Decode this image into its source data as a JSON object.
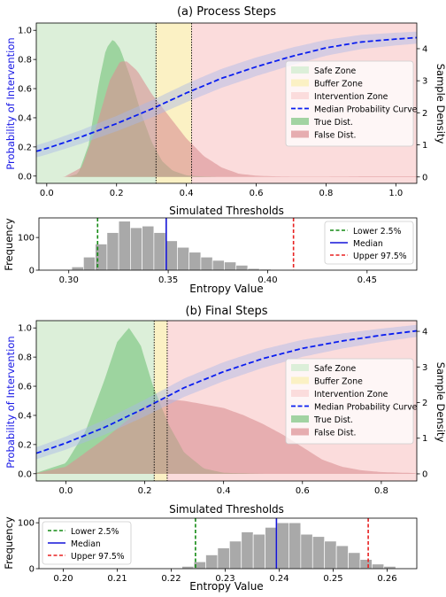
{
  "chart_data": [
    {
      "type": "area",
      "title": "(a) Process Steps",
      "xlabel": "Simulated Thresholds",
      "ylabel": "Probability of Intervention",
      "y2label": "Sample Density",
      "xlim": [
        -0.03,
        1.06
      ],
      "ylim": [
        -0.05,
        1.05
      ],
      "y2lim": [
        -0.2,
        4.8
      ],
      "xticks": [
        "0.0",
        "0.2",
        "0.4",
        "0.6",
        "0.8",
        "1.0"
      ],
      "yticks": [
        "0.0",
        "0.2",
        "0.4",
        "0.6",
        "0.8",
        "1.0"
      ],
      "y2ticks": [
        "0",
        "1",
        "2",
        "3",
        "4"
      ],
      "zones": {
        "safe_end": 0.313,
        "buffer_end": 0.415
      },
      "legend_position": "center-right",
      "legend": [
        "Safe Zone",
        "Buffer Zone",
        "Intervention Zone",
        "Median Probability Curve",
        "True Dist.",
        "False Dist."
      ],
      "median_curve": {
        "x": [
          -0.03,
          0.0,
          0.1,
          0.2,
          0.3,
          0.4,
          0.5,
          0.6,
          0.7,
          0.8,
          0.9,
          1.0,
          1.06
        ],
        "y": [
          0.17,
          0.19,
          0.27,
          0.36,
          0.46,
          0.57,
          0.67,
          0.75,
          0.82,
          0.88,
          0.92,
          0.94,
          0.95
        ]
      },
      "true_dist": {
        "x": [
          0.06,
          0.09,
          0.12,
          0.15,
          0.17,
          0.19,
          0.21,
          0.24,
          0.27,
          0.3,
          0.33,
          0.36,
          0.4,
          0.45,
          0.5
        ],
        "y": [
          0.0,
          0.1,
          1.0,
          3.0,
          4.0,
          4.3,
          4.0,
          3.1,
          2.0,
          1.1,
          0.5,
          0.2,
          0.05,
          0.01,
          0.0
        ]
      },
      "false_dist": {
        "x": [
          0.05,
          0.1,
          0.14,
          0.18,
          0.21,
          0.23,
          0.26,
          0.3,
          0.35,
          0.4,
          0.45,
          0.5,
          0.55,
          0.6,
          0.65,
          0.7,
          0.8,
          0.9,
          1.0,
          1.06
        ],
        "y": [
          0.0,
          0.3,
          1.5,
          3.0,
          3.6,
          3.6,
          3.3,
          2.6,
          1.9,
          1.2,
          0.65,
          0.3,
          0.1,
          0.04,
          0.02,
          0.01,
          0.01,
          0.02,
          0.02,
          0.02
        ]
      }
    },
    {
      "type": "bar",
      "xlabel": "Entropy Value",
      "ylabel": "Frequency",
      "xlim": [
        0.285,
        0.475
      ],
      "ylim": [
        0,
        160
      ],
      "xticks": [
        "0.30",
        "0.35",
        "0.40",
        "0.45"
      ],
      "yticks": [
        "0",
        "100"
      ],
      "bin_start": 0.3015,
      "bin_width": 0.0059,
      "values": [
        10,
        40,
        80,
        115,
        150,
        130,
        135,
        115,
        90,
        70,
        55,
        40,
        30,
        25,
        15,
        5,
        3,
        2
      ],
      "lines": {
        "lower": 0.3145,
        "median": 0.349,
        "upper": 0.413
      },
      "legend_position": "upper-right",
      "legend": [
        "Lower 2.5%",
        "Median",
        "Upper 97.5%"
      ]
    },
    {
      "type": "area",
      "title": "(b) Final Steps",
      "xlabel": "Simulated Thresholds",
      "ylabel": "Probability of Intervention",
      "y2label": "Sample Density",
      "xlim": [
        -0.075,
        0.89
      ],
      "ylim": [
        -0.05,
        1.05
      ],
      "y2lim": [
        -0.2,
        4.3
      ],
      "xticks": [
        "0.0",
        "0.2",
        "0.4",
        "0.6",
        "0.8"
      ],
      "yticks": [
        "0.0",
        "0.2",
        "0.4",
        "0.6",
        "0.8",
        "1.0"
      ],
      "y2ticks": [
        "0",
        "1",
        "2",
        "3",
        "4"
      ],
      "zones": {
        "safe_end": 0.224,
        "buffer_end": 0.257
      },
      "legend_position": "center-right",
      "legend": [
        "Safe Zone",
        "Buffer Zone",
        "Intervention Zone",
        "Median Probability Curve",
        "True Dist.",
        "False Dist."
      ],
      "median_curve": {
        "x": [
          -0.075,
          0.0,
          0.1,
          0.2,
          0.3,
          0.4,
          0.5,
          0.6,
          0.7,
          0.8,
          0.89
        ],
        "y": [
          0.14,
          0.21,
          0.32,
          0.45,
          0.59,
          0.7,
          0.79,
          0.86,
          0.91,
          0.95,
          0.98
        ]
      },
      "true_dist": {
        "x": [
          -0.075,
          0.0,
          0.05,
          0.1,
          0.13,
          0.16,
          0.19,
          0.22,
          0.26,
          0.3,
          0.35,
          0.4,
          0.5
        ],
        "y": [
          0.03,
          0.3,
          1.2,
          2.7,
          3.7,
          4.1,
          3.6,
          2.5,
          1.4,
          0.6,
          0.15,
          0.03,
          0.0
        ]
      },
      "false_dist": {
        "x": [
          -0.075,
          0.0,
          0.1,
          0.2,
          0.25,
          0.3,
          0.4,
          0.45,
          0.5,
          0.55,
          0.6,
          0.65,
          0.7,
          0.75,
          0.8,
          0.89
        ],
        "y": [
          0.02,
          0.2,
          1.0,
          1.9,
          2.1,
          2.05,
          1.85,
          1.65,
          1.4,
          1.1,
          0.75,
          0.4,
          0.2,
          0.1,
          0.05,
          0.02
        ]
      }
    },
    {
      "type": "bar",
      "xlabel": "Entropy Value",
      "ylabel": "Frequency",
      "xlim": [
        0.1955,
        0.2655
      ],
      "ylim": [
        0,
        110
      ],
      "xticks": [
        "0.20",
        "0.21",
        "0.22",
        "0.23",
        "0.24",
        "0.25",
        "0.26"
      ],
      "yticks": [
        "0",
        "100"
      ],
      "bin_start": 0.222,
      "bin_width": 0.0022,
      "values": [
        5,
        15,
        30,
        45,
        60,
        80,
        75,
        90,
        100,
        100,
        75,
        70,
        60,
        50,
        35,
        20,
        10,
        5
      ],
      "lines": {
        "lower": 0.2245,
        "median": 0.2395,
        "upper": 0.2565
      },
      "legend_position": "upper-left",
      "legend": [
        "Lower 2.5%",
        "Median",
        "Upper 97.5%"
      ]
    }
  ],
  "colors": {
    "safe": "#dcefd9",
    "buffer": "#fbf1c4",
    "intervention": "#fbdcdc",
    "median": "#0a1ef0",
    "band": "#a9b8e8",
    "true": "#7bc47f",
    "false": "#db8f93",
    "hist": "#a9a9a9",
    "lower": "#138a13",
    "med_line": "#1414d8",
    "upper": "#e82020",
    "ylabel": "#1a1ae6"
  }
}
